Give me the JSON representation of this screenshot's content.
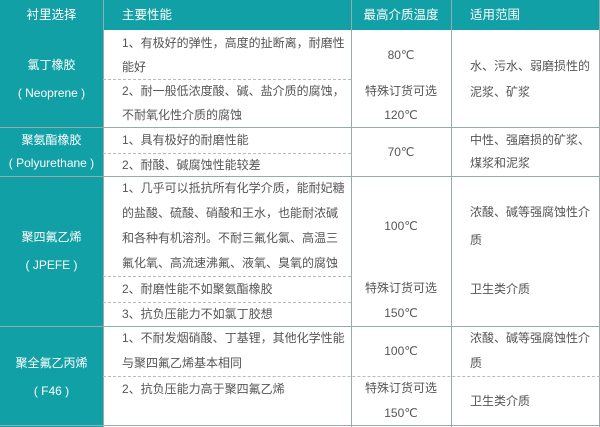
{
  "header": [
    "衬里选择",
    "主要性能",
    "最高介质温度",
    "适用范围"
  ],
  "rows": [
    {
      "lining": "氯丁橡胶",
      "lining_en": "( Neoprene )",
      "props": [
        "1、有极好的弹性，高度的扯断离，耐磨性能好",
        "2、耐一般低浓度酸、碱、盐介质的腐蚀，不耐氧化性介质的腐蚀"
      ],
      "temp": [
        "80℃",
        "特殊订货可选",
        "120℃"
      ],
      "scope": [
        "水、污水、弱磨损性的泥浆、矿浆"
      ]
    },
    {
      "lining": "聚氨酯橡胶",
      "lining_en": "( Polyurethane )",
      "props": [
        "1、具有极好的耐磨性能",
        "2、耐酸、碱腐蚀性能较差"
      ],
      "temp": [
        "70℃"
      ],
      "scope": [
        "中性、强磨损的矿浆、煤浆和泥浆"
      ]
    },
    {
      "lining": "聚四氟乙烯",
      "lining_en": "( JPEFE )",
      "props": [
        "1、几乎可以抵抗所有化学介质，能耐妃糖的盐酸、硫酸、硝酸和王水，也能耐浓碱和各种有机溶剂。不耐三氟化氯、高温三氟化氧、高流速沸氟、液氧、臭氧的腐蚀",
        "2、耐磨性能不如聚氨酯橡胶",
        "3、抗负压能力不如氯丁胶想"
      ],
      "temp": [
        "100℃",
        "特殊订货可选",
        "150℃"
      ],
      "scope": [
        "浓酸、碱等强腐蚀性介质",
        "卫生类介质"
      ]
    },
    {
      "lining": "聚全氟乙丙烯",
      "lining_en": "( F46 )",
      "props": [
        "1、不耐发烟硝酸、丁基锂，其他化学性能与聚四氟乙烯基本相同",
        "2、抗负压能力高于聚四氟乙烯"
      ],
      "temp": [
        "100℃",
        "特殊订货可选",
        "150℃"
      ],
      "scope": [
        "浓酸、碱等强腐蚀性介质",
        "卫生类介质"
      ]
    }
  ],
  "colors": {
    "header": "#11a0a6",
    "text": "#555555"
  }
}
